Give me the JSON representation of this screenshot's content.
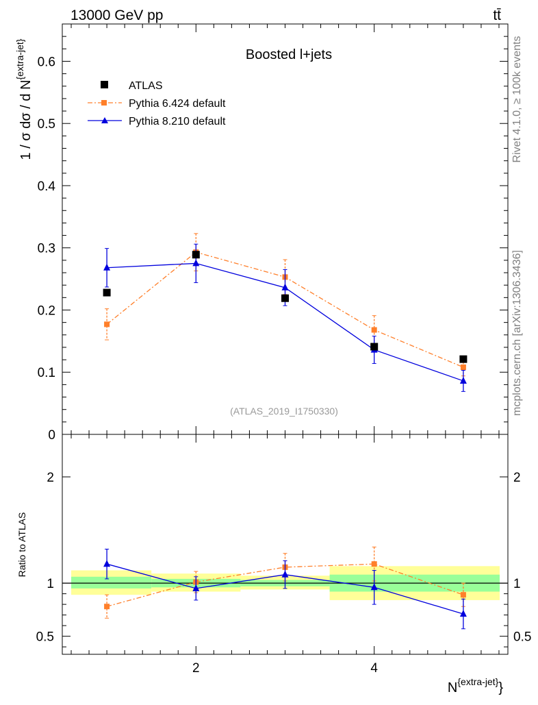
{
  "header": {
    "left": "13000 GeV pp",
    "right": "tt̄"
  },
  "side_text": {
    "top": "Rivet 4.1.0, ≥ 100k events",
    "bottom": "mcplots.cern.ch [arXiv:1306.3436]"
  },
  "colors": {
    "atlas": "#000000",
    "py6": "#ff7f2a",
    "py8": "#0000dd",
    "band_inner": "#99ff99",
    "band_outer": "#ffff99"
  },
  "chart_data": [
    {
      "type": "line",
      "title": "Boosted l+jets",
      "watermark": "(ATLAS_2019_I1750330)",
      "ylabel": "1 / σ dσ / d N^{extra-jet}",
      "ylim": [
        0,
        0.66
      ],
      "yticks": [
        {
          "v": 0,
          "label": "0"
        },
        {
          "v": 0.1,
          "label": "0.1"
        },
        {
          "v": 0.2,
          "label": "0.2"
        },
        {
          "v": 0.3,
          "label": "0.3"
        },
        {
          "v": 0.4,
          "label": "0.4"
        },
        {
          "v": 0.5,
          "label": "0.5"
        },
        {
          "v": 0.6,
          "label": "0.6"
        }
      ],
      "xlim": [
        0.5,
        5.5
      ],
      "legend": [
        "ATLAS",
        "Pythia 6.424 default",
        "Pythia 8.210 default"
      ],
      "series": [
        {
          "name": "ATLAS",
          "x": [
            1,
            2,
            3,
            4,
            5
          ],
          "y": [
            0.228,
            0.289,
            0.219,
            0.141,
            0.121
          ],
          "err": [
            0.005,
            0.005,
            0.005,
            0.005,
            0.004
          ]
        },
        {
          "name": "Pythia 6.424 default",
          "x": [
            1,
            2,
            3,
            4,
            5
          ],
          "y": [
            0.177,
            0.293,
            0.253,
            0.168,
            0.108
          ],
          "err": [
            0.025,
            0.03,
            0.028,
            0.023,
            0.014
          ]
        },
        {
          "name": "Pythia 8.210 default",
          "x": [
            1,
            2,
            3,
            4,
            5
          ],
          "y": [
            0.268,
            0.275,
            0.236,
            0.136,
            0.086
          ],
          "err": [
            0.031,
            0.031,
            0.029,
            0.022,
            0.017
          ]
        }
      ]
    },
    {
      "type": "line",
      "ylabel": "Ratio to ATLAS",
      "xlabel": "N^{extra-jet}",
      "ylim": [
        0.33,
        2.4
      ],
      "yticks": [
        {
          "v": 0.5,
          "label": "0.5"
        },
        {
          "v": 1,
          "label": "1"
        },
        {
          "v": 2,
          "label": "2"
        }
      ],
      "xlim": [
        0.5,
        5.5
      ],
      "xticks": [
        {
          "v": 2,
          "label": "2"
        },
        {
          "v": 4,
          "label": "4"
        }
      ],
      "bands": [
        {
          "x0": 0.6,
          "x1": 1.5,
          "inner": [
            0.95,
            1.06
          ],
          "outer": [
            0.89,
            1.12
          ]
        },
        {
          "x0": 1.5,
          "x1": 2.5,
          "inner": [
            0.96,
            1.04
          ],
          "outer": [
            0.92,
            1.09
          ]
        },
        {
          "x0": 2.5,
          "x1": 3.5,
          "inner": [
            0.97,
            1.03
          ],
          "outer": [
            0.94,
            1.07
          ]
        },
        {
          "x0": 3.5,
          "x1": 5.5,
          "inner": [
            0.92,
            1.08
          ],
          "outer": [
            0.84,
            1.16
          ]
        }
      ],
      "series": [
        {
          "name": "Pythia 6.424 default",
          "x": [
            1,
            2,
            3,
            4,
            5
          ],
          "y": [
            0.78,
            1.01,
            1.15,
            1.18,
            0.89
          ],
          "err": [
            0.11,
            0.1,
            0.13,
            0.16,
            0.11
          ]
        },
        {
          "name": "Pythia 8.210 default",
          "x": [
            1,
            2,
            3,
            4,
            5
          ],
          "y": [
            1.18,
            0.95,
            1.08,
            0.96,
            0.71
          ],
          "err": [
            0.14,
            0.11,
            0.13,
            0.16,
            0.14
          ]
        }
      ]
    }
  ]
}
